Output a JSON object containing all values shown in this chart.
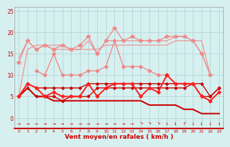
{
  "bg_color": "#d6f0f0",
  "grid_color": "#b0cece",
  "text_color": "#cc0000",
  "xlabel": "Vent moyen/en rafales ( km/h )",
  "xlim": [
    -0.5,
    23.5
  ],
  "ylim": [
    -2.5,
    26
  ],
  "yticks": [
    0,
    5,
    10,
    15,
    20,
    25
  ],
  "series": [
    {
      "name": "rafales_star_line",
      "y": [
        13,
        18,
        16,
        17,
        16,
        17,
        16,
        17,
        19,
        15,
        18,
        21,
        18,
        19,
        18,
        18,
        18,
        19,
        19,
        19,
        18,
        15,
        10,
        null
      ],
      "color": "#f08888",
      "linewidth": 1.0,
      "marker": "*",
      "markersize": 4,
      "zorder": 3
    },
    {
      "name": "rafales_top_band",
      "y": [
        14,
        18,
        16,
        17,
        16,
        16,
        16,
        16,
        18,
        15,
        18,
        18,
        18,
        18,
        18,
        18,
        18,
        18,
        19,
        19,
        18,
        18,
        10,
        null
      ],
      "color": "#f08888",
      "linewidth": 0.8,
      "marker": null,
      "markersize": 0,
      "zorder": 2
    },
    {
      "name": "rafales_mid",
      "y": [
        5,
        null,
        11,
        10,
        15,
        10,
        10,
        10,
        11,
        11,
        12,
        18,
        12,
        12,
        12,
        11,
        10,
        10,
        null,
        null,
        null,
        null,
        null,
        null
      ],
      "color": "#f08888",
      "linewidth": 1.0,
      "marker": "D",
      "markersize": 2.5,
      "zorder": 2
    },
    {
      "name": "rafales_flat",
      "y": [
        5,
        16,
        17,
        17,
        17,
        17,
        16,
        16,
        16,
        16,
        17,
        17,
        17,
        17,
        17,
        17,
        17,
        17,
        18,
        18,
        18,
        15,
        10,
        null
      ],
      "color": "#f08888",
      "linewidth": 0.8,
      "marker": null,
      "markersize": 0,
      "zorder": 2
    },
    {
      "name": "vent_max_red",
      "y": [
        5,
        8,
        7,
        5,
        6,
        5,
        5,
        5,
        8,
        5,
        7,
        8,
        8,
        8,
        5,
        7,
        6,
        10,
        8,
        8,
        8,
        5,
        4,
        6
      ],
      "color": "#ff2020",
      "linewidth": 1.5,
      "marker": "D",
      "markersize": 2.5,
      "zorder": 5
    },
    {
      "name": "vent_mean_top",
      "y": [
        5,
        8,
        7,
        7,
        7,
        7,
        7,
        7,
        8,
        8,
        8,
        8,
        8,
        8,
        8,
        8,
        8,
        8,
        8,
        8,
        8,
        8,
        5,
        7
      ],
      "color": "#cc0000",
      "linewidth": 1.0,
      "marker": "D",
      "markersize": 2,
      "zorder": 4
    },
    {
      "name": "vent_mean_bot",
      "y": [
        5,
        7,
        5,
        5,
        5,
        4,
        5,
        5,
        5,
        7,
        7,
        7,
        7,
        7,
        7,
        7,
        7,
        7,
        7,
        7,
        8,
        5,
        5,
        7
      ],
      "color": "#cc0000",
      "linewidth": 1.0,
      "marker": "D",
      "markersize": 2,
      "zorder": 4
    },
    {
      "name": "vent_min",
      "y": [
        5,
        7,
        5,
        5,
        4,
        4,
        4,
        4,
        4,
        4,
        4,
        4,
        4,
        4,
        4,
        3,
        3,
        3,
        3,
        2,
        2,
        1,
        1,
        1
      ],
      "color": "#cc0000",
      "linewidth": 1.5,
      "marker": null,
      "markersize": 0,
      "zorder": 3
    }
  ],
  "arrows": [
    "E",
    "E",
    "E",
    "E",
    "E",
    "E",
    "E",
    "E",
    "E",
    "E",
    "E",
    "E",
    "E",
    "E",
    "SE",
    "SE",
    "SE",
    "S",
    "S",
    "SW",
    "S",
    "S",
    "S",
    "S"
  ],
  "arrow_unicode": {
    "E": "→",
    "SE": "↘",
    "S": "↓",
    "SW": "↙",
    "N": "↑",
    "NE": "↗",
    "W": "←",
    "NW": "↖"
  }
}
